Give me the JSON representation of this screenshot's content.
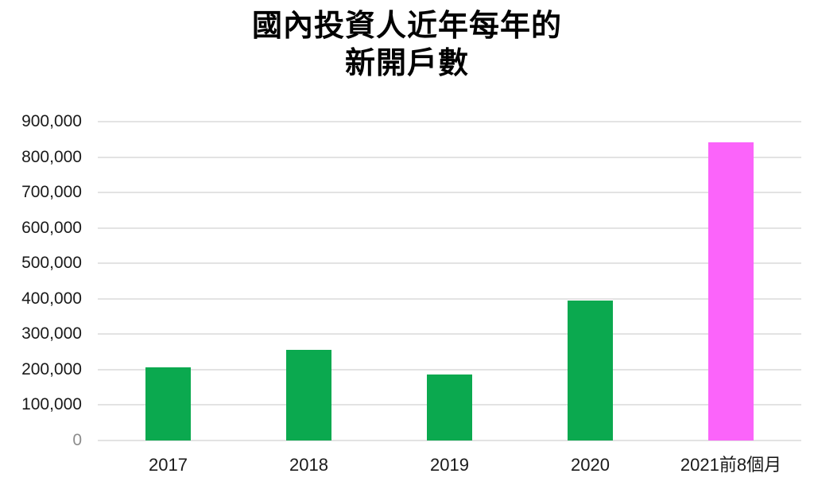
{
  "title": {
    "line1": "國內投資人近年每年的",
    "line2": "新開戶數"
  },
  "colors": {
    "background": "#FFFFFF",
    "title": "#000000",
    "axis_label": "#1A1A1A",
    "zero_label": "#8C8C8C",
    "gridline": "#E3E3E3",
    "bar_green": "#0BA94F",
    "bar_pink": "#FB64FA"
  },
  "chart_data": {
    "type": "bar",
    "title": "國內投資人近年每年的新開戶數",
    "categories": [
      "2017",
      "2018",
      "2019",
      "2020",
      "2021前8個月"
    ],
    "values": [
      207000,
      257000,
      187000,
      394000,
      841000
    ],
    "bar_colors": [
      "#0BA94F",
      "#0BA94F",
      "#0BA94F",
      "#0BA94F",
      "#FB64FA"
    ],
    "xlabel": "",
    "ylabel": "",
    "ylim": [
      0,
      900000
    ],
    "ytick_step": 100000,
    "ytick_labels": [
      "0",
      "100,000",
      "200,000",
      "300,000",
      "400,000",
      "500,000",
      "600,000",
      "700,000",
      "800,000",
      "900,000"
    ],
    "grid": "horizontal",
    "legend": "none"
  }
}
